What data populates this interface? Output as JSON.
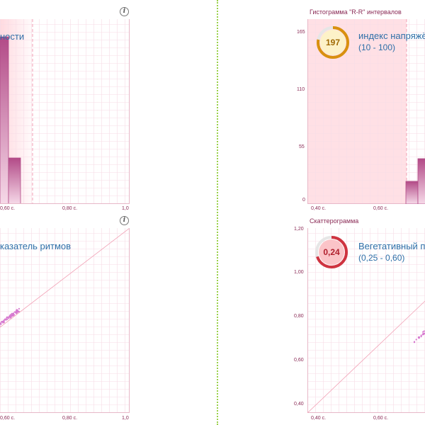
{
  "panels": {
    "top_left": {
      "caption": "ности",
      "x_ticks": [
        "0,60 с.",
        "0,80 с.",
        "1,0"
      ]
    },
    "top_right": {
      "title": "Гистограмма \"R-R\" интервалов",
      "y_ticks": [
        "165",
        "110",
        "55",
        "0"
      ],
      "x_ticks": [
        "0,40 с.",
        "0,60 с."
      ],
      "gauge": {
        "value": "197",
        "ring_color": "#d9900f",
        "fill_color": "#fdf2c8",
        "text_color": "#a06a05",
        "level": 0.78
      },
      "caption": "индекс напряжё",
      "range": "(10 - 100)"
    },
    "bottom_left": {
      "caption": "казатель ритмов",
      "x_ticks": [
        "0,60 с.",
        "0,80 с.",
        "1,0"
      ]
    },
    "bottom_right": {
      "title": "Скаттерограмма",
      "y_ticks": [
        "1,20",
        "1,00",
        "0,80",
        "0,60",
        "0,40"
      ],
      "x_ticks": [
        "0,40 с.",
        "0,60 с."
      ],
      "gauge": {
        "value": "0,24",
        "ring_color": "#cf3340",
        "fill_color": "#fbc4c8",
        "text_color": "#b01f2d",
        "level": 0.7
      },
      "caption": "Вегетативный п",
      "range": "(0,25 - 0,60)"
    }
  },
  "colors": {
    "grid": "#f7dce6",
    "axis": "#e7b8c8",
    "bar_top": "#b24a87",
    "bar_bottom": "#f6d9e8",
    "points": "#d77ad0",
    "shade": "#ffd5dc",
    "threshold": "#f2a0b5"
  }
}
